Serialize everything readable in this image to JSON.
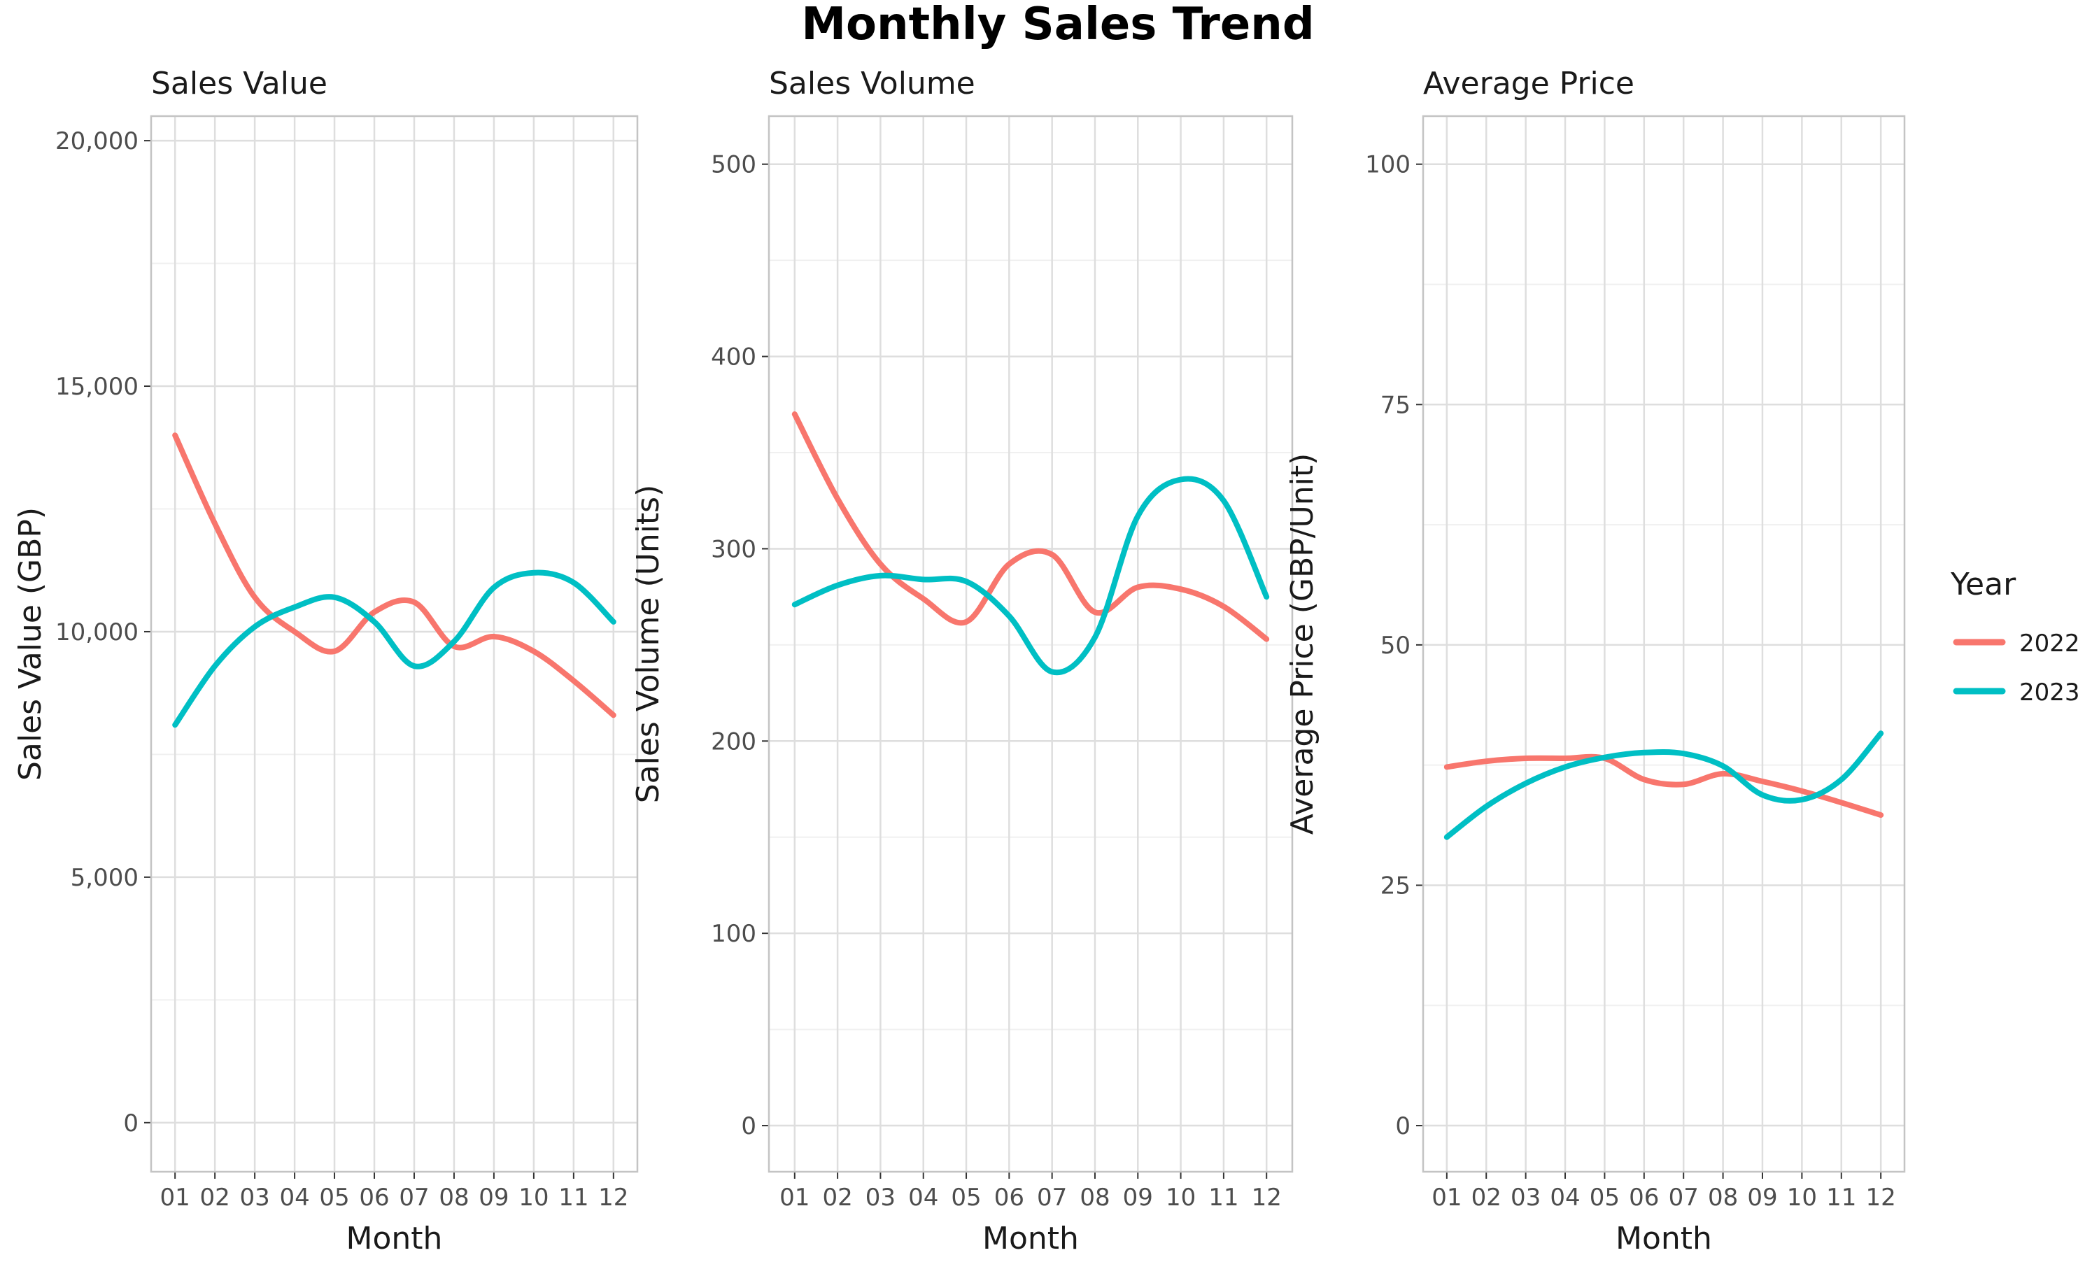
{
  "title": "Monthly Sales Trend",
  "legend": {
    "title": "Year",
    "placement": "right",
    "entries": [
      {
        "label": "2022",
        "color": "#F8766D"
      },
      {
        "label": "2023",
        "color": "#00BFC4"
      }
    ]
  },
  "chart_data": [
    {
      "type": "line",
      "title": "Sales Value",
      "xlabel": "Month",
      "ylabel": "Sales Value (GBP)",
      "categories": [
        "01",
        "02",
        "03",
        "04",
        "05",
        "06",
        "07",
        "08",
        "09",
        "10",
        "11",
        "12"
      ],
      "ylim": [
        -1000,
        20500
      ],
      "yticks": [
        0,
        5000,
        10000,
        15000,
        20000
      ],
      "ytick_labels": [
        "0",
        "5,000",
        "10,000",
        "15,000",
        "20,000"
      ],
      "grid": true,
      "series": [
        {
          "name": "2022",
          "color": "#F8766D",
          "values": [
            14000,
            12200,
            10700,
            10000,
            9600,
            10400,
            10600,
            9700,
            9900,
            9600,
            9000,
            8300
          ]
        },
        {
          "name": "2023",
          "color": "#00BFC4",
          "values": [
            8100,
            9300,
            10100,
            10500,
            10700,
            10200,
            9300,
            9800,
            10900,
            11200,
            11000,
            10200
          ]
        }
      ]
    },
    {
      "type": "line",
      "title": "Sales Volume",
      "xlabel": "Month",
      "ylabel": "Sales Volume (Units)",
      "categories": [
        "01",
        "02",
        "03",
        "04",
        "05",
        "06",
        "07",
        "08",
        "09",
        "10",
        "11",
        "12"
      ],
      "ylim": [
        -24,
        525
      ],
      "yticks": [
        0,
        100,
        200,
        300,
        400,
        500
      ],
      "ytick_labels": [
        "0",
        "100",
        "200",
        "300",
        "400",
        "500"
      ],
      "grid": true,
      "series": [
        {
          "name": "2022",
          "color": "#F8766D",
          "values": [
            370,
            326,
            292,
            274,
            262,
            292,
            297,
            267,
            280,
            279,
            270,
            253
          ]
        },
        {
          "name": "2023",
          "color": "#00BFC4",
          "values": [
            271,
            281,
            286,
            284,
            283,
            265,
            236,
            254,
            317,
            336,
            325,
            275
          ]
        }
      ]
    },
    {
      "type": "line",
      "title": "Average Price",
      "xlabel": "Month",
      "ylabel": "Average Price (GBP/Unit)",
      "categories": [
        "01",
        "02",
        "03",
        "04",
        "05",
        "06",
        "07",
        "08",
        "09",
        "10",
        "11",
        "12"
      ],
      "ylim": [
        -4.8,
        105
      ],
      "yticks": [
        0,
        25,
        50,
        75,
        100
      ],
      "ytick_labels": [
        "0",
        "25",
        "50",
        "75",
        "100"
      ],
      "grid": true,
      "series": [
        {
          "name": "2022",
          "color": "#F8766D",
          "values": [
            37.3,
            37.9,
            38.2,
            38.2,
            38.2,
            36.0,
            35.5,
            36.6,
            35.8,
            34.8,
            33.6,
            32.3
          ]
        },
        {
          "name": "2023",
          "color": "#00BFC4",
          "values": [
            30.0,
            33.2,
            35.6,
            37.3,
            38.3,
            38.8,
            38.7,
            37.4,
            34.4,
            33.9,
            36.0,
            40.8
          ]
        }
      ]
    }
  ]
}
